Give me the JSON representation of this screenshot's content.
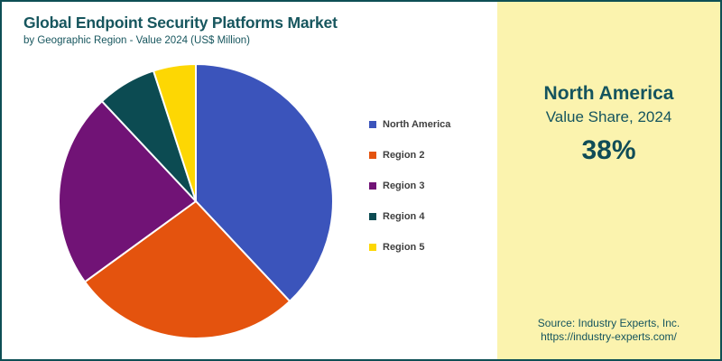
{
  "header": {
    "title": "Global Endpoint Security Platforms Market",
    "subtitle": "by Geographic Region - Value 2024 (US$ Million)"
  },
  "chart_data": {
    "type": "pie",
    "title": "Global Endpoint Security Platforms Market",
    "subtitle": "by Geographic Region - Value 2024 (US$ Million)",
    "labels": [
      "North America",
      "Region 2",
      "Region 3",
      "Region 4",
      "Region 5"
    ],
    "values": [
      38,
      27,
      23,
      7,
      5
    ],
    "value_unit": "percent of total value share (North America labeled 38%; others estimated from slice angles)",
    "colors": [
      "#3B54BB",
      "#E4530E",
      "#711376",
      "#0C4B52",
      "#FDD703"
    ],
    "start_angle_deg_from_top": 0,
    "direction": "clockwise",
    "slice_gap_stroke": "#FFFFFF",
    "legend_position": "right",
    "highlight": {
      "label": "North America",
      "share_pct": 38
    }
  },
  "legend": {
    "items": [
      {
        "label": "North America",
        "color": "#3B54BB"
      },
      {
        "label": "Region 2",
        "color": "#E4530E"
      },
      {
        "label": "Region 3",
        "color": "#711376"
      },
      {
        "label": "Region 4",
        "color": "#0C4B52"
      },
      {
        "label": "Region 5",
        "color": "#FDD703"
      }
    ]
  },
  "panel": {
    "region": "North America",
    "caption": "Value Share, 2024",
    "share": "38%",
    "source_line1": "Source: Industry Experts, Inc.",
    "source_line2": "https://industry-experts.com/"
  },
  "colors": {
    "border": "#0E4F55",
    "title_text": "#17565E",
    "legend_text": "#404040",
    "panel_bg": "#FBF3AE",
    "panel_text": "#14545E",
    "share_text": "#104C57",
    "chart_bg": "#FFFFFF"
  }
}
